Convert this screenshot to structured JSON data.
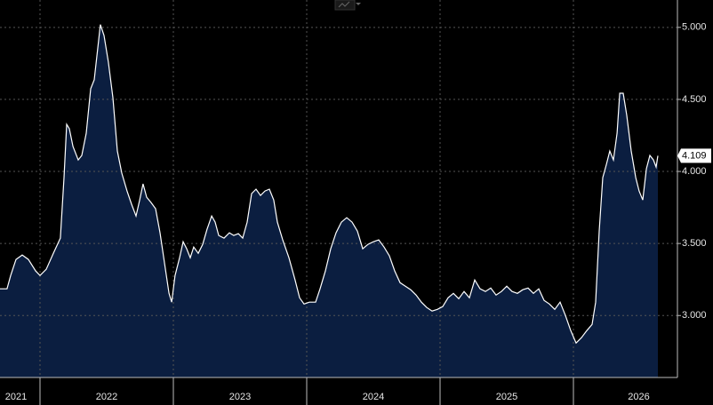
{
  "chart_data": {
    "type": "area",
    "x": [
      2021.7,
      2021.753,
      2021.78,
      2021.82,
      2021.867,
      2021.913,
      2021.967,
      2022,
      2022.047,
      2022.1,
      2022.153,
      2022.18,
      2022.2,
      2022.22,
      2022.247,
      2022.287,
      2022.313,
      2022.347,
      2022.38,
      2022.407,
      2022.433,
      2022.453,
      2022.48,
      2022.513,
      2022.547,
      2022.58,
      2022.613,
      2022.653,
      2022.687,
      2022.72,
      2022.747,
      2022.773,
      2022.8,
      2022.833,
      2022.867,
      2022.9,
      2022.933,
      2022.967,
      2022.987,
      2023.013,
      2023.047,
      2023.073,
      2023.1,
      2023.127,
      2023.153,
      2023.187,
      2023.22,
      2023.253,
      2023.287,
      2023.313,
      2023.34,
      2023.38,
      2023.42,
      2023.453,
      2023.487,
      2023.52,
      2023.553,
      2023.587,
      2023.62,
      2023.653,
      2023.687,
      2023.72,
      2023.753,
      2023.78,
      2023.82,
      2023.867,
      2023.913,
      2023.947,
      2023.98,
      2024.02,
      2024.067,
      2024.1,
      2024.14,
      2024.18,
      2024.22,
      2024.26,
      2024.3,
      2024.34,
      2024.38,
      2024.42,
      2024.46,
      2024.5,
      2024.54,
      2024.58,
      2024.62,
      2024.66,
      2024.7,
      2024.74,
      2024.78,
      2024.82,
      2024.86,
      2024.9,
      2024.94,
      2024.98,
      2025.02,
      2025.06,
      2025.1,
      2025.14,
      2025.18,
      2025.22,
      2025.26,
      2025.3,
      2025.34,
      2025.38,
      2025.42,
      2025.46,
      2025.5,
      2025.54,
      2025.58,
      2025.62,
      2025.66,
      2025.7,
      2025.74,
      2025.78,
      2025.82,
      2025.86,
      2025.9,
      2025.94,
      2025.98,
      2026.02,
      2026.06,
      2026.1,
      2026.14,
      2026.167,
      2026.193,
      2026.22,
      2026.247,
      2026.273,
      2026.3,
      2026.327,
      2026.347,
      2026.373,
      2026.4,
      2026.433,
      2026.467,
      2026.493,
      2026.52,
      2026.547,
      2026.573,
      2026.6,
      2026.62,
      2026.633
    ],
    "values": [
      3.185,
      3.185,
      3.278,
      3.389,
      3.42,
      3.389,
      3.309,
      3.278,
      3.321,
      3.432,
      3.537,
      3.957,
      4.327,
      4.296,
      4.173,
      4.08,
      4.111,
      4.265,
      4.574,
      4.636,
      4.852,
      5.019,
      4.944,
      4.759,
      4.512,
      4.142,
      3.988,
      3.864,
      3.772,
      3.691,
      3.802,
      3.914,
      3.821,
      3.784,
      3.741,
      3.574,
      3.37,
      3.154,
      3.093,
      3.278,
      3.401,
      3.512,
      3.463,
      3.401,
      3.475,
      3.432,
      3.494,
      3.599,
      3.691,
      3.648,
      3.556,
      3.537,
      3.574,
      3.556,
      3.568,
      3.537,
      3.648,
      3.846,
      3.877,
      3.833,
      3.864,
      3.877,
      3.802,
      3.648,
      3.525,
      3.401,
      3.247,
      3.123,
      3.08,
      3.093,
      3.093,
      3.185,
      3.309,
      3.463,
      3.574,
      3.648,
      3.679,
      3.648,
      3.586,
      3.463,
      3.494,
      3.512,
      3.525,
      3.475,
      3.414,
      3.309,
      3.228,
      3.204,
      3.179,
      3.142,
      3.093,
      3.056,
      3.031,
      3.043,
      3.062,
      3.123,
      3.154,
      3.117,
      3.167,
      3.123,
      3.247,
      3.185,
      3.167,
      3.191,
      3.142,
      3.167,
      3.204,
      3.167,
      3.154,
      3.179,
      3.191,
      3.154,
      3.185,
      3.105,
      3.08,
      3.043,
      3.093,
      3,
      2.895,
      2.809,
      2.846,
      2.895,
      2.938,
      3.093,
      3.586,
      3.957,
      4.049,
      4.142,
      4.08,
      4.265,
      4.543,
      4.543,
      4.389,
      4.142,
      3.957,
      3.864,
      3.802,
      4.019,
      4.111,
      4.08,
      4.031,
      4.109
    ],
    "color": "#0b1e40",
    "line_color": "#ffffff",
    "last_value_label": "4.109",
    "xlim": [
      2021.7,
      2026.78
    ],
    "ylim": [
      2.57,
      5.19
    ],
    "xticks": [
      {
        "value": 2021.82,
        "label": "2021"
      },
      {
        "value": 2022.5,
        "label": "2022"
      },
      {
        "value": 2023.5,
        "label": "2023"
      },
      {
        "value": 2024.5,
        "label": "2024"
      },
      {
        "value": 2025.5,
        "label": "2025"
      },
      {
        "value": 2026.49,
        "label": "2026"
      }
    ],
    "xgrid": [
      2022,
      2023,
      2024,
      2025,
      2026
    ],
    "yticks": [
      {
        "value": 3,
        "label": "3.000"
      },
      {
        "value": 3.5,
        "label": "3.500"
      },
      {
        "value": 4,
        "label": "4.000"
      },
      {
        "value": 4.5,
        "label": "4.500"
      },
      {
        "value": 5,
        "label": "5.000"
      }
    ],
    "grid": true
  }
}
